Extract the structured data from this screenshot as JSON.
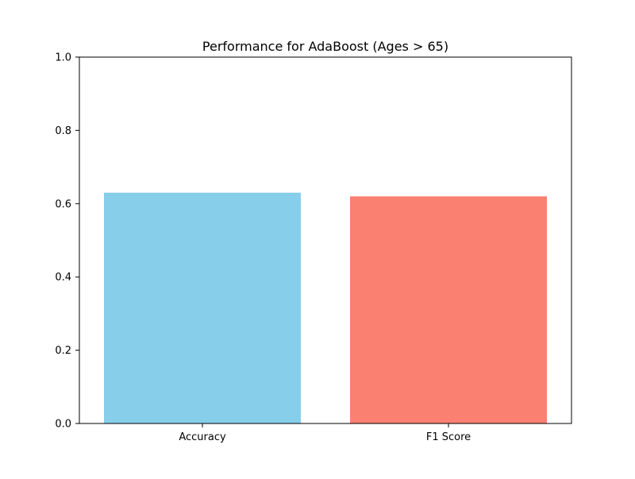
{
  "chart_data": {
    "type": "bar",
    "title": "Performance for AdaBoost (Ages > 65)",
    "categories": [
      "Accuracy",
      "F1 Score"
    ],
    "values": [
      0.63,
      0.62
    ],
    "colors": [
      "#87ceeb",
      "#fa8072"
    ],
    "xlabel": "",
    "ylabel": "",
    "ylim": [
      0,
      1.0
    ],
    "yticks": [
      "0.0",
      "0.2",
      "0.4",
      "0.6",
      "0.8",
      "1.0"
    ],
    "grid": false,
    "legend": "none"
  }
}
